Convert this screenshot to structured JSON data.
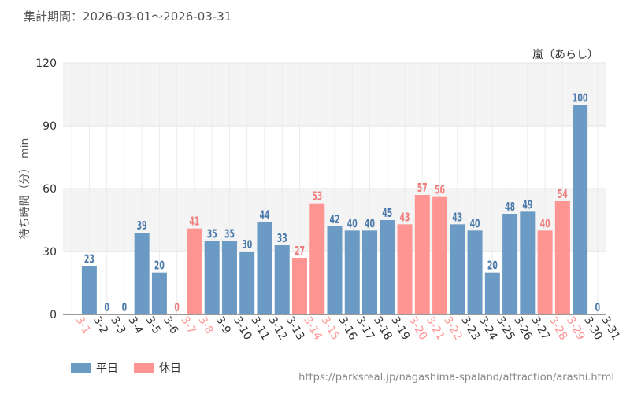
{
  "header": {
    "period_label": "集計期間：2026-03-01〜2026-03-31"
  },
  "source_url": "https://parksreal.jp/nagashima-spaland/attraction/arashi.html",
  "colors": {
    "weekday": "#6b9ac4",
    "holiday": "#ff9593",
    "weekday_text": "#4a7aab",
    "holiday_text": "#f07b7b"
  },
  "chart_data": {
    "type": "bar",
    "title": "嵐（あらし）",
    "ylabel": "待ち時間（分） min",
    "ylim": [
      0,
      120
    ],
    "yticks": [
      0,
      30,
      60,
      90,
      120
    ],
    "grid": true,
    "legend_position": "bottom-left",
    "categories": [
      "3-1",
      "3-2",
      "3-3",
      "3-4",
      "3-5",
      "3-6",
      "3-7",
      "3-8",
      "3-9",
      "3-10",
      "3-11",
      "3-12",
      "3-13",
      "3-14",
      "3-15",
      "3-16",
      "3-17",
      "3-18",
      "3-19",
      "3-20",
      "3-21",
      "3-22",
      "3-23",
      "3-24",
      "3-25",
      "3-26",
      "3-27",
      "3-28",
      "3-29",
      "3-30",
      "3-31"
    ],
    "values": [
      null,
      23,
      0,
      0,
      39,
      20,
      0,
      41,
      35,
      35,
      30,
      44,
      33,
      27,
      53,
      42,
      40,
      40,
      45,
      43,
      57,
      56,
      43,
      40,
      20,
      48,
      49,
      40,
      54,
      100,
      0
    ],
    "day_type": [
      "holiday",
      "weekday",
      "weekday",
      "weekday",
      "weekday",
      "weekday",
      "holiday",
      "holiday",
      "weekday",
      "weekday",
      "weekday",
      "weekday",
      "weekday",
      "holiday",
      "holiday",
      "weekday",
      "weekday",
      "weekday",
      "weekday",
      "holiday",
      "holiday",
      "holiday",
      "weekday",
      "weekday",
      "weekday",
      "weekday",
      "weekday",
      "holiday",
      "holiday",
      "weekday",
      "weekday"
    ],
    "series": [
      {
        "name": "平日",
        "key": "weekday"
      },
      {
        "name": "休日",
        "key": "holiday"
      }
    ]
  }
}
